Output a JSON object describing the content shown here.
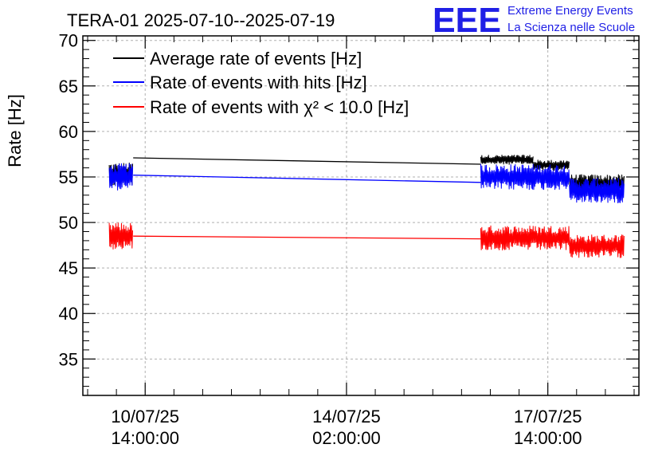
{
  "header": {
    "title": "TERA-01 2025-07-10--2025-07-19",
    "logo_text": "EEE",
    "logo_line1": "Extreme Energy Events",
    "logo_line2": "La Scienza nelle Scuole"
  },
  "colors": {
    "average": "#000000",
    "hits": "#0000ff",
    "chi2": "#ff0000",
    "grid": "#b0b0b0",
    "logo": "#1f1fe6"
  },
  "chart_data": {
    "type": "line",
    "title": "TERA-01 2025-07-10--2025-07-19",
    "ylabel": "Rate [Hz]",
    "xlabel": "",
    "ylim": [
      31,
      70.5
    ],
    "y_ticks": [
      35,
      40,
      45,
      50,
      55,
      60,
      65,
      70
    ],
    "x_axis": "time",
    "xlim": [
      "2025-07-09 12:00",
      "2025-07-19 04:00"
    ],
    "x_ticks": [
      {
        "time": "2025-07-10 14:00",
        "line1": "10/07/25",
        "line2": "14:00:00"
      },
      {
        "time": "2025-07-14 02:00",
        "line1": "14/07/25",
        "line2": "02:00:00"
      },
      {
        "time": "2025-07-17 14:00",
        "line1": "17/07/25",
        "line2": "14:00:00"
      }
    ],
    "grid": true,
    "legend_position": "top-left",
    "series": [
      {
        "name": "Average rate of events [Hz]",
        "color": "#000000",
        "segments": [
          {
            "start": "2025-07-09 23:00",
            "end": "2025-07-10 09:00",
            "center": 55.3,
            "noise": 1.3
          },
          {
            "start": "2025-07-16 10:00",
            "end": "2025-07-17 08:00",
            "center": 56.9,
            "noise": 0.55
          },
          {
            "start": "2025-07-17 08:00",
            "end": "2025-07-17 23:00",
            "center": 56.3,
            "noise": 0.6
          },
          {
            "start": "2025-07-17 23:00",
            "end": "2025-07-18 22:00",
            "center": 54.3,
            "noise": 1.0
          }
        ],
        "connectors": [
          {
            "from": [
              "2025-07-10 09:00",
              57.1
            ],
            "to": [
              "2025-07-16 10:00",
              56.4
            ]
          }
        ]
      },
      {
        "name": "Rate of events with hits [Hz]",
        "color": "#0000ff",
        "segments": [
          {
            "start": "2025-07-09 23:00",
            "end": "2025-07-10 09:00",
            "center": 55.0,
            "noise": 1.5
          },
          {
            "start": "2025-07-16 10:00",
            "end": "2025-07-17 23:00",
            "center": 55.0,
            "noise": 1.45
          },
          {
            "start": "2025-07-17 23:00",
            "end": "2025-07-18 22:00",
            "center": 53.5,
            "noise": 1.4
          }
        ],
        "connectors": [
          {
            "from": [
              "2025-07-10 09:00",
              55.2
            ],
            "to": [
              "2025-07-16 10:00",
              54.4
            ]
          }
        ]
      },
      {
        "name": "Rate of events with χ² < 10.0 [Hz]",
        "color": "#ff0000",
        "segments": [
          {
            "start": "2025-07-09 23:00",
            "end": "2025-07-10 09:00",
            "center": 48.5,
            "noise": 1.5
          },
          {
            "start": "2025-07-16 10:00",
            "end": "2025-07-17 23:00",
            "center": 48.3,
            "noise": 1.4
          },
          {
            "start": "2025-07-17 23:00",
            "end": "2025-07-18 22:00",
            "center": 47.4,
            "noise": 1.3
          }
        ],
        "connectors": [
          {
            "from": [
              "2025-07-10 09:00",
              48.5
            ],
            "to": [
              "2025-07-16 10:00",
              48.2
            ]
          }
        ]
      }
    ]
  }
}
